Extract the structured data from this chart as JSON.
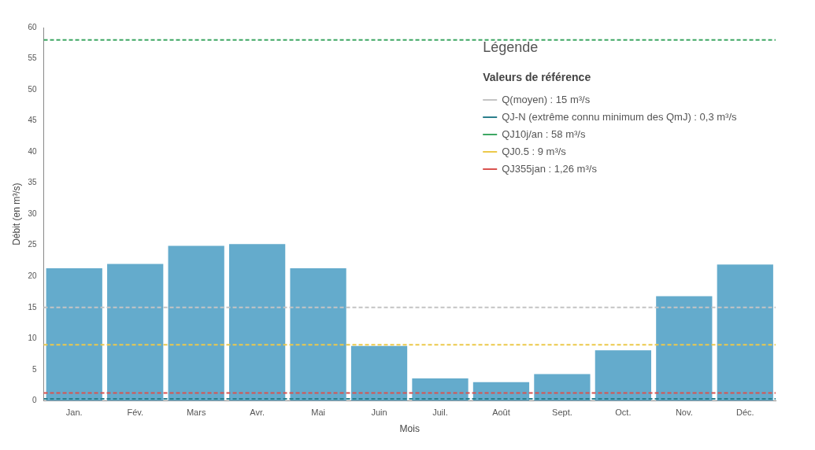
{
  "chart_data": {
    "type": "bar",
    "xlabel": "Mois",
    "ylabel": "Débit (en m³/s)",
    "legend_title": "Légende",
    "annotations": [
      "Valeurs de référence"
    ],
    "categories": [
      "Jan.",
      "Fév.",
      "Mars",
      "Avr.",
      "Mai",
      "Juin",
      "Juil.",
      "Août",
      "Sept.",
      "Oct.",
      "Nov.",
      "Déc."
    ],
    "values": [
      21.3,
      22.0,
      24.9,
      25.2,
      21.3,
      8.8,
      3.6,
      3.0,
      4.3,
      8.1,
      16.8,
      21.9
    ],
    "color": "#64abcc",
    "ylim": [
      0,
      60
    ],
    "yticks": [
      0,
      5,
      10,
      15,
      20,
      25,
      30,
      35,
      40,
      45,
      50,
      55,
      60
    ],
    "grid": false,
    "legend": "top right",
    "ref_lines": [
      {
        "axis": "y",
        "value": 15,
        "label": "Q(moyen) : 15 m³/s",
        "color": "#c4c4c4",
        "line_style": "dashed"
      },
      {
        "axis": "y",
        "value": 0.3,
        "label": "QJ-N (extrême connu minimum des QmJ) : 0,3 m³/s",
        "color": "#2b7f8c",
        "line_style": "dashed"
      },
      {
        "axis": "y",
        "value": 58,
        "label": "QJ10j/an : 58 m³/s",
        "color": "#3ea764",
        "line_style": "dashed"
      },
      {
        "axis": "y",
        "value": 9,
        "label": "QJ0.5 : 9 m³/s",
        "color": "#ecc94b",
        "line_style": "dashed"
      },
      {
        "axis": "y",
        "value": 1.26,
        "label": "QJ355jan : 1,26 m³/s",
        "color": "#d9534f",
        "line_style": "dashed"
      }
    ]
  }
}
